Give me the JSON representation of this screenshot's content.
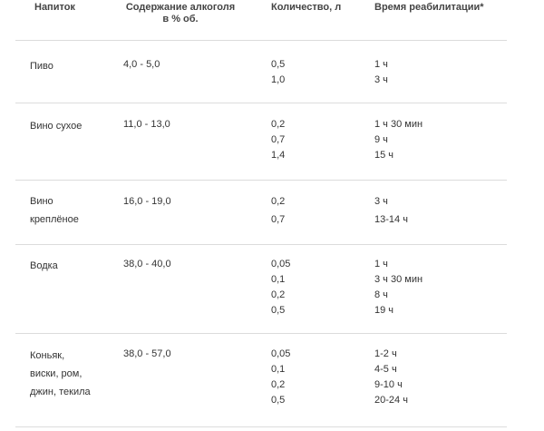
{
  "headers": {
    "drink": "Напиток",
    "alcohol_line1": "Содержание алкоголя",
    "alcohol_line2": "в % об.",
    "amount": "Количество, л",
    "rehab": "Время реабилитации*"
  },
  "rows": [
    {
      "name_lines": [
        "Пиво"
      ],
      "alcohol": "4,0 - 5,0",
      "amounts": [
        "0,5",
        "1,0"
      ],
      "times": [
        "1 ч",
        "3 ч"
      ]
    },
    {
      "name_lines": [
        "Вино сухое"
      ],
      "alcohol": "11,0 - 13,0",
      "amounts": [
        "0,2",
        "0,7",
        "1,4"
      ],
      "times": [
        "1 ч 30 мин",
        "9 ч",
        "15 ч"
      ]
    },
    {
      "name_lines": [
        "Вино",
        "креплёное"
      ],
      "alcohol": "16,0 - 19,0",
      "amounts": [
        "0,2",
        "0,7"
      ],
      "times": [
        "3 ч",
        "13-14 ч"
      ]
    },
    {
      "name_lines": [
        "Водка"
      ],
      "alcohol": "38,0 - 40,0",
      "amounts": [
        "0,05",
        "0,1",
        "0,2",
        "0,5"
      ],
      "times": [
        "1 ч",
        "3 ч 30 мин",
        "8 ч",
        "19 ч"
      ]
    },
    {
      "name_lines": [
        "Коньяк,",
        "виски, ром,",
        "джин, текила"
      ],
      "alcohol": "38,0 - 57,0",
      "amounts": [
        "0,05",
        "0,1",
        "0,2",
        "0,5"
      ],
      "times": [
        "1-2 ч",
        "4-5 ч",
        "9-10 ч",
        "20-24 ч"
      ]
    }
  ]
}
